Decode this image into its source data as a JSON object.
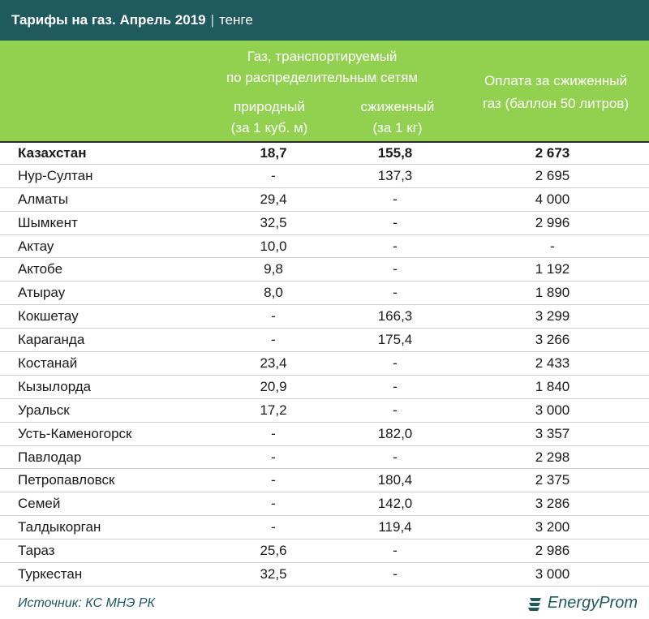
{
  "title": {
    "main": "Тарифы на газ. Апрель 2019",
    "separator": "|",
    "unit": "тенге"
  },
  "header": {
    "group_line1": "Газ, транспортируемый",
    "group_line2": "по распределительным сетям",
    "natural_line1": "природный",
    "natural_line2": "(за 1 куб. м)",
    "liquefied_line1": "сжиженный",
    "liquefied_line2": "(за 1 кг)",
    "balloon_line1": "Оплата за сжиженный",
    "balloon_line2": "газ (баллон 50 литров)"
  },
  "rows": [
    {
      "city": "Казахстан",
      "natural": "18,7",
      "liquefied": "155,8",
      "balloon": "2 673"
    },
    {
      "city": "Нур-Султан",
      "natural": "-",
      "liquefied": "137,3",
      "balloon": "2 695"
    },
    {
      "city": "Алматы",
      "natural": "29,4",
      "liquefied": "-",
      "balloon": "4 000"
    },
    {
      "city": "Шымкент",
      "natural": "32,5",
      "liquefied": "-",
      "balloon": "2 996"
    },
    {
      "city": "Актау",
      "natural": "10,0",
      "liquefied": "-",
      "balloon": "-"
    },
    {
      "city": "Актобе",
      "natural": "9,8",
      "liquefied": "-",
      "balloon": "1 192"
    },
    {
      "city": "Атырау",
      "natural": "8,0",
      "liquefied": "-",
      "balloon": "1 890"
    },
    {
      "city": "Кокшетау",
      "natural": "-",
      "liquefied": "166,3",
      "balloon": "3 299"
    },
    {
      "city": "Караганда",
      "natural": "-",
      "liquefied": "175,4",
      "balloon": "3 266"
    },
    {
      "city": "Костанай",
      "natural": "23,4",
      "liquefied": "-",
      "balloon": "2 433"
    },
    {
      "city": "Кызылорда",
      "natural": "20,9",
      "liquefied": "-",
      "balloon": "1 840"
    },
    {
      "city": "Уральск",
      "natural": "17,2",
      "liquefied": "-",
      "balloon": "3 000"
    },
    {
      "city": "Усть-Каменогорск",
      "natural": "-",
      "liquefied": "182,0",
      "balloon": "3 357"
    },
    {
      "city": "Павлодар",
      "natural": "-",
      "liquefied": "-",
      "balloon": "2 298"
    },
    {
      "city": "Петропавловск",
      "natural": "-",
      "liquefied": "180,4",
      "balloon": "2 375"
    },
    {
      "city": "Семей",
      "natural": "-",
      "liquefied": "142,0",
      "balloon": "3 286"
    },
    {
      "city": "Талдыкорган",
      "natural": "-",
      "liquefied": "119,4",
      "balloon": "3 200"
    },
    {
      "city": "Тараз",
      "natural": "25,6",
      "liquefied": "-",
      "balloon": "2 986"
    },
    {
      "city": "Туркестан",
      "natural": "32,5",
      "liquefied": "-",
      "balloon": "3 000"
    }
  ],
  "footer": {
    "source": "Источник: КС МНЭ РК",
    "logo_text": "EnergyProm",
    "logo_icon": "energyprom-logo-icon"
  },
  "colors": {
    "title_bg": "#1f5a5f",
    "header_bg": "#92d050",
    "accent_text": "#1f5a5f"
  }
}
